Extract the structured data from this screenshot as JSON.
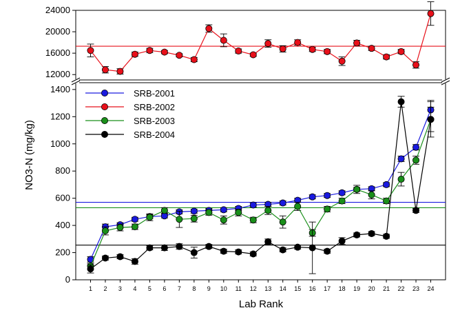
{
  "chart_data": {
    "type": "line",
    "xlabel": "Lab Rank",
    "ylabel": "NO3-N (mg/kg)",
    "categories": [
      "1",
      "2",
      "3",
      "4",
      "5",
      "6",
      "7",
      "8",
      "9",
      "10",
      "11",
      "12",
      "13",
      "14",
      "15",
      "16",
      "17",
      "18",
      "19",
      "20",
      "21",
      "22",
      "23",
      "24"
    ],
    "y_axis_break": true,
    "upper_panel": {
      "ylim": [
        11000,
        24000
      ],
      "yticks": [
        12000,
        16000,
        20000,
        24000
      ],
      "ytick_labels": [
        "12000",
        "16000",
        "20000",
        "24000"
      ]
    },
    "lower_panel": {
      "ylim": [
        0,
        1450
      ],
      "yticks": [
        0,
        200,
        400,
        600,
        800,
        1000,
        1200,
        1400
      ],
      "ytick_labels": [
        "0",
        "200",
        "400",
        "600",
        "800",
        "1000",
        "1200",
        "1400"
      ]
    },
    "legend_position": "top-left",
    "series": [
      {
        "name": "SRB-2001",
        "color": "#1a1adf",
        "panel": "lower",
        "reference_line": 570,
        "values": [
          150,
          390,
          405,
          445,
          465,
          470,
          500,
          505,
          510,
          515,
          525,
          550,
          555,
          565,
          585,
          610,
          620,
          640,
          665,
          670,
          700,
          890,
          975,
          1250
        ],
        "errors": [
          20,
          20,
          15,
          15,
          15,
          15,
          15,
          15,
          15,
          15,
          15,
          15,
          15,
          15,
          15,
          15,
          15,
          15,
          15,
          15,
          15,
          20,
          20,
          70
        ]
      },
      {
        "name": "SRB-2002",
        "color": "#e8101a",
        "panel": "upper",
        "reference_line": 17300,
        "values": [
          16500,
          12900,
          12600,
          15800,
          16500,
          16200,
          15600,
          14800,
          20600,
          18400,
          16400,
          15700,
          17800,
          16800,
          18000,
          16700,
          16300,
          14500,
          17900,
          16900,
          15300,
          16300,
          13800,
          23400
        ],
        "errors": [
          1200,
          600,
          500,
          400,
          400,
          300,
          300,
          400,
          700,
          1200,
          400,
          300,
          700,
          600,
          500,
          400,
          400,
          800,
          500,
          400,
          400,
          400,
          600,
          2200
        ]
      },
      {
        "name": "SRB-2003",
        "color": "#1a8f1a",
        "panel": "lower",
        "reference_line": 530,
        "values": [
          100,
          360,
          385,
          390,
          460,
          510,
          445,
          450,
          495,
          440,
          495,
          440,
          510,
          425,
          540,
          345,
          520,
          580,
          665,
          625,
          580,
          740,
          880,
          1180
        ],
        "errors": [
          20,
          30,
          25,
          20,
          25,
          20,
          60,
          25,
          20,
          30,
          25,
          20,
          30,
          45,
          30,
          25,
          20,
          20,
          30,
          30,
          20,
          50,
          30,
          90
        ]
      },
      {
        "name": "SRB-2004",
        "color": "#000000",
        "panel": "lower",
        "reference_line": 255,
        "values": [
          80,
          160,
          170,
          135,
          235,
          235,
          245,
          200,
          245,
          210,
          205,
          190,
          280,
          220,
          240,
          235,
          210,
          285,
          330,
          340,
          320,
          1310,
          510,
          1180
        ],
        "errors": [
          30,
          15,
          15,
          20,
          15,
          20,
          20,
          40,
          15,
          15,
          15,
          15,
          20,
          15,
          15,
          190,
          15,
          25,
          15,
          15,
          15,
          40,
          15,
          130
        ]
      }
    ]
  }
}
